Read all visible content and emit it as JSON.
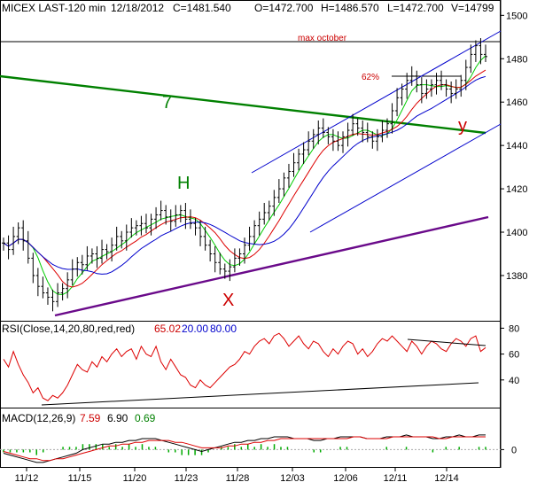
{
  "header": {
    "symbol": "MICEX LAST-120 min",
    "date": "12/18/2012",
    "close": "C=1481.540",
    "open": "O=1472.700",
    "high": "H=1486.570",
    "low": "L=1472.700",
    "volume": "V=14799"
  },
  "annotations": {
    "max_october": "max october",
    "pct": "62%",
    "seven": "7",
    "h": "H",
    "x": "X",
    "y": "y"
  },
  "rsi_header": {
    "title": "RSI(Close,14,20,80,red,red)",
    "value": "65.02",
    "low": "20.00",
    "high": "80.00"
  },
  "macd_header": {
    "title": "MACD(12,26,9)",
    "macd": "7.59",
    "signal": "6.90",
    "hist": "0.69"
  },
  "colors": {
    "price_bar": "#000000",
    "ma_green": "#00cc00",
    "ma_red": "#dd0000",
    "ma_blue": "#0000cc",
    "trend_green": "#008000",
    "trend_purple": "#6a0a8a",
    "channel_blue": "#0000cc",
    "max_line": "#000000",
    "rsi_line": "#dd0000",
    "macd_line": "#000000",
    "signal_line": "#dd0000",
    "hist": "#00aa00",
    "label_red": "#cc0000",
    "label_green": "#008000"
  },
  "chart_data": [
    {
      "type": "candlestick",
      "title": "MICEX LAST-120 min",
      "x_ticks": [
        "11/12",
        "11/15",
        "11/20",
        "11/23",
        "11/28",
        "12/03",
        "12/06",
        "12/11",
        "12/14"
      ],
      "y_ticks": [
        1380,
        1400,
        1420,
        1440,
        1460,
        1480,
        1500
      ],
      "ylim": [
        1362,
        1503
      ],
      "close": [
        1395,
        1392,
        1398,
        1402,
        1396,
        1388,
        1380,
        1375,
        1372,
        1370,
        1368,
        1372,
        1374,
        1378,
        1383,
        1386,
        1385,
        1389,
        1390,
        1388,
        1392,
        1391,
        1394,
        1398,
        1396,
        1400,
        1402,
        1403,
        1404,
        1402,
        1406,
        1408,
        1410,
        1407,
        1405,
        1408,
        1410,
        1406,
        1404,
        1402,
        1398,
        1394,
        1390,
        1386,
        1383,
        1382,
        1384,
        1388,
        1390,
        1394,
        1398,
        1403,
        1406,
        1409,
        1412,
        1416,
        1420,
        1425,
        1428,
        1432,
        1436,
        1438,
        1442,
        1445,
        1448,
        1446,
        1444,
        1442,
        1440,
        1444,
        1447,
        1450,
        1448,
        1446,
        1444,
        1442,
        1444,
        1447,
        1450,
        1456,
        1462,
        1466,
        1470,
        1472,
        1468,
        1464,
        1466,
        1468,
        1470,
        1468,
        1466,
        1464,
        1466,
        1470,
        1476,
        1482,
        1486,
        1482,
        1481
      ]
    },
    {
      "type": "line",
      "title": "RSI(Close,14,20,80,red,red)",
      "y_ticks": [
        40,
        60,
        80
      ],
      "ylim": [
        20,
        83
      ],
      "series": [
        {
          "name": "RSI",
          "values": [
            56,
            50,
            62,
            52,
            44,
            38,
            30,
            34,
            26,
            24,
            28,
            26,
            30,
            36,
            44,
            52,
            48,
            46,
            54,
            50,
            58,
            54,
            60,
            64,
            58,
            62,
            64,
            56,
            66,
            60,
            58,
            66,
            54,
            48,
            56,
            50,
            44,
            42,
            36,
            34,
            40,
            36,
            34,
            38,
            42,
            46,
            50,
            52,
            56,
            62,
            60,
            66,
            70,
            72,
            68,
            74,
            76,
            72,
            66,
            70,
            74,
            68,
            64,
            70,
            68,
            62,
            58,
            64,
            60,
            66,
            70,
            68,
            60,
            64,
            58,
            62,
            68,
            72,
            70,
            74,
            70,
            66,
            62,
            70,
            66,
            60,
            66,
            70,
            68,
            64,
            62,
            68,
            72,
            70,
            66,
            72,
            74,
            62,
            65
          ]
        }
      ]
    },
    {
      "type": "line",
      "title": "MACD(12,26,9)",
      "y_ticks": [
        0
      ],
      "ylim": [
        -9,
        22
      ],
      "series": [
        {
          "name": "MACD",
          "values": [
            -2,
            -3,
            -4,
            -5,
            -6,
            -7,
            -7,
            -6,
            -5,
            -4,
            -3,
            -2,
            0,
            1,
            2,
            3,
            3,
            4,
            4,
            5,
            5,
            6,
            6,
            6,
            5,
            4,
            3,
            2,
            1,
            0,
            -1,
            0,
            1,
            2,
            3,
            4,
            4,
            5,
            5,
            6,
            6,
            7,
            7,
            7,
            6,
            6,
            6,
            5,
            5,
            6,
            6,
            7,
            7,
            7,
            7,
            6,
            6,
            6,
            7,
            7,
            7,
            8,
            7,
            7,
            7,
            6,
            6,
            7,
            7,
            8,
            7,
            7,
            8,
            8
          ]
        },
        {
          "name": "Signal",
          "values": [
            -1,
            -2,
            -3,
            -4,
            -5,
            -5,
            -6,
            -6,
            -5,
            -5,
            -4,
            -3,
            -2,
            -1,
            0,
            1,
            2,
            2,
            3,
            3,
            4,
            4,
            5,
            5,
            5,
            5,
            4,
            4,
            3,
            2,
            1,
            1,
            1,
            1,
            2,
            2,
            3,
            3,
            4,
            4,
            5,
            5,
            6,
            6,
            6,
            6,
            6,
            6,
            6,
            6,
            6,
            6,
            6,
            7,
            7,
            6,
            6,
            6,
            6,
            7,
            7,
            7,
            7,
            7,
            7,
            7,
            6,
            6,
            7,
            7,
            7,
            7,
            7,
            7
          ]
        }
      ]
    }
  ]
}
